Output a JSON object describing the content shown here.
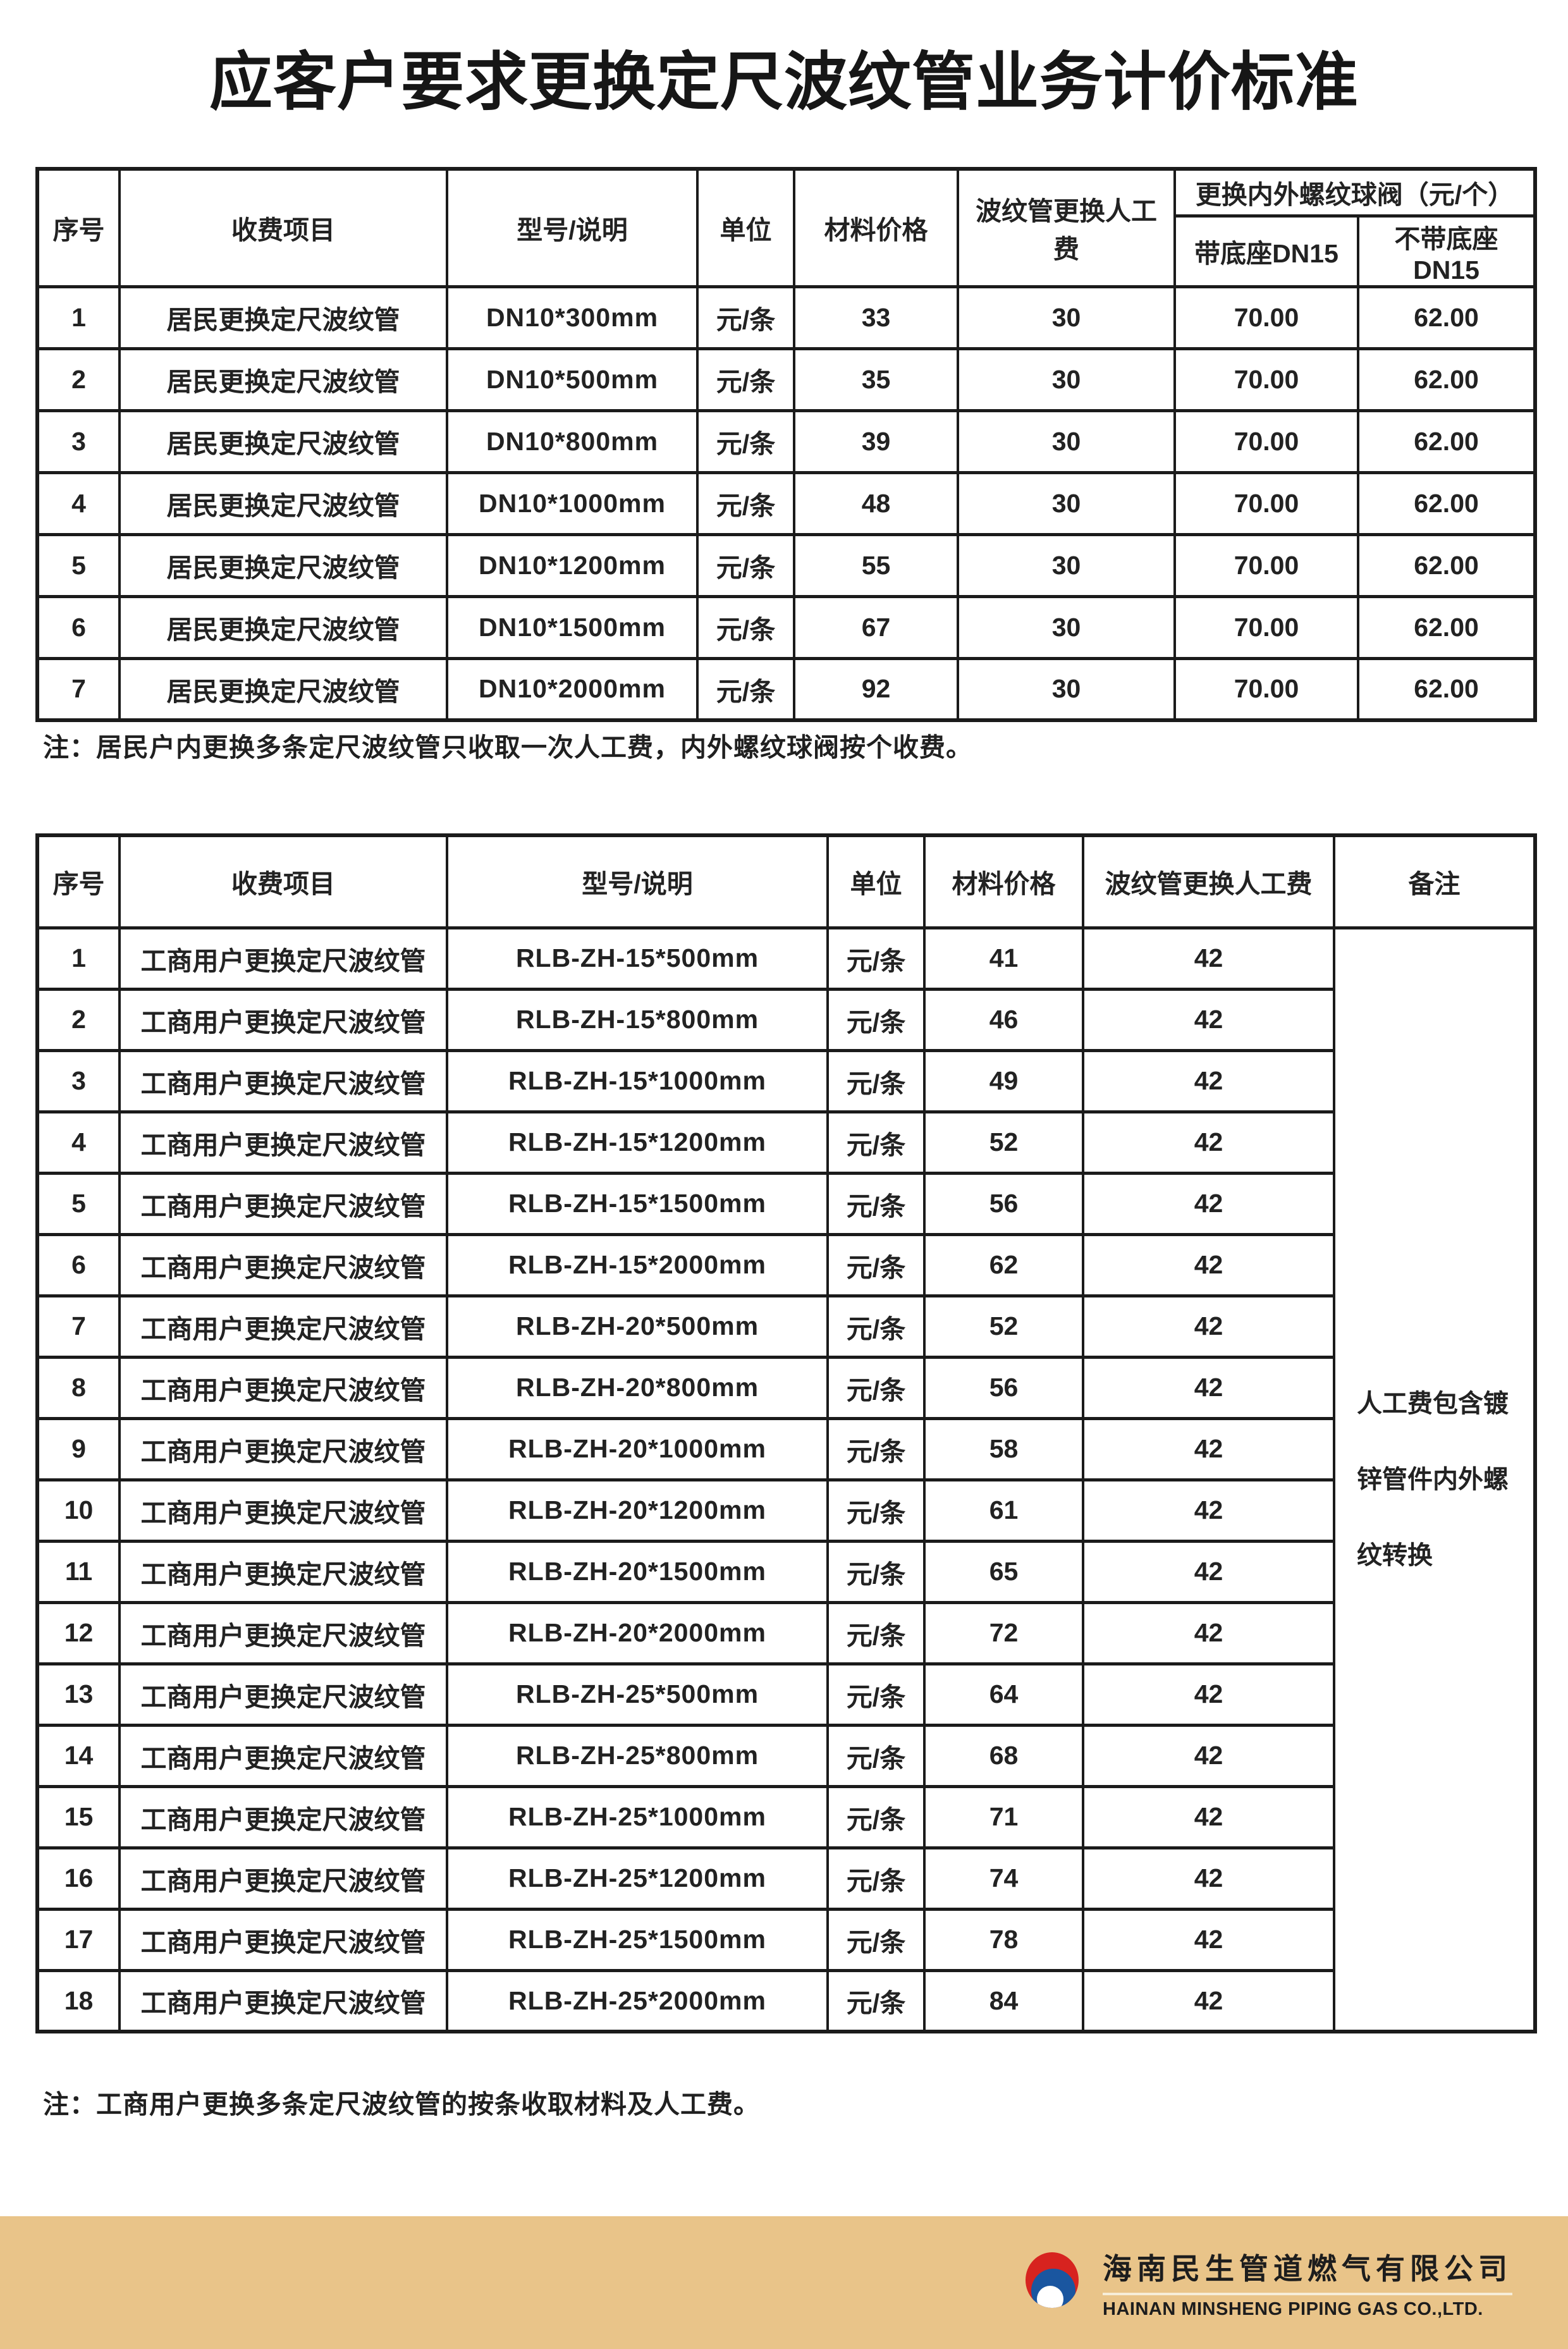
{
  "page": {
    "title": "应客户要求更换定尺波纹管业务计价标准",
    "background_color": "#ffffff",
    "border_color": "#1b1b1b"
  },
  "table1": {
    "headers": {
      "seq": "序号",
      "item": "收费项目",
      "model": "型号/说明",
      "unit": "单位",
      "material_price": "材料价格",
      "labor_fee": "波纹管更换人工费",
      "valve_group": "更换内外螺纹球阀（元/个）",
      "valve_with_base": "带底座DN15",
      "valve_without_base": "不带底座DN15"
    },
    "rows": [
      [
        "1",
        "居民更换定尺波纹管",
        "DN10*300mm",
        "元/条",
        "33",
        "30",
        "70.00",
        "62.00"
      ],
      [
        "2",
        "居民更换定尺波纹管",
        "DN10*500mm",
        "元/条",
        "35",
        "30",
        "70.00",
        "62.00"
      ],
      [
        "3",
        "居民更换定尺波纹管",
        "DN10*800mm",
        "元/条",
        "39",
        "30",
        "70.00",
        "62.00"
      ],
      [
        "4",
        "居民更换定尺波纹管",
        "DN10*1000mm",
        "元/条",
        "48",
        "30",
        "70.00",
        "62.00"
      ],
      [
        "5",
        "居民更换定尺波纹管",
        "DN10*1200mm",
        "元/条",
        "55",
        "30",
        "70.00",
        "62.00"
      ],
      [
        "6",
        "居民更换定尺波纹管",
        "DN10*1500mm",
        "元/条",
        "67",
        "30",
        "70.00",
        "62.00"
      ],
      [
        "7",
        "居民更换定尺波纹管",
        "DN10*2000mm",
        "元/条",
        "92",
        "30",
        "70.00",
        "62.00"
      ]
    ],
    "note": "注：居民户内更换多条定尺波纹管只收取一次人工费，内外螺纹球阀按个收费。"
  },
  "table2": {
    "headers": {
      "seq": "序号",
      "item": "收费项目",
      "model": "型号/说明",
      "unit": "单位",
      "material_price": "材料价格",
      "labor_fee": "波纹管更换人工费",
      "remark": "备注"
    },
    "rows": [
      [
        "1",
        "工商用户更换定尺波纹管",
        "RLB-ZH-15*500mm",
        "元/条",
        "41",
        "42"
      ],
      [
        "2",
        "工商用户更换定尺波纹管",
        "RLB-ZH-15*800mm",
        "元/条",
        "46",
        "42"
      ],
      [
        "3",
        "工商用户更换定尺波纹管",
        "RLB-ZH-15*1000mm",
        "元/条",
        "49",
        "42"
      ],
      [
        "4",
        "工商用户更换定尺波纹管",
        "RLB-ZH-15*1200mm",
        "元/条",
        "52",
        "42"
      ],
      [
        "5",
        "工商用户更换定尺波纹管",
        "RLB-ZH-15*1500mm",
        "元/条",
        "56",
        "42"
      ],
      [
        "6",
        "工商用户更换定尺波纹管",
        "RLB-ZH-15*2000mm",
        "元/条",
        "62",
        "42"
      ],
      [
        "7",
        "工商用户更换定尺波纹管",
        "RLB-ZH-20*500mm",
        "元/条",
        "52",
        "42"
      ],
      [
        "8",
        "工商用户更换定尺波纹管",
        "RLB-ZH-20*800mm",
        "元/条",
        "56",
        "42"
      ],
      [
        "9",
        "工商用户更换定尺波纹管",
        "RLB-ZH-20*1000mm",
        "元/条",
        "58",
        "42"
      ],
      [
        "10",
        "工商用户更换定尺波纹管",
        "RLB-ZH-20*1200mm",
        "元/条",
        "61",
        "42"
      ],
      [
        "11",
        "工商用户更换定尺波纹管",
        "RLB-ZH-20*1500mm",
        "元/条",
        "65",
        "42"
      ],
      [
        "12",
        "工商用户更换定尺波纹管",
        "RLB-ZH-20*2000mm",
        "元/条",
        "72",
        "42"
      ],
      [
        "13",
        "工商用户更换定尺波纹管",
        "RLB-ZH-25*500mm",
        "元/条",
        "64",
        "42"
      ],
      [
        "14",
        "工商用户更换定尺波纹管",
        "RLB-ZH-25*800mm",
        "元/条",
        "68",
        "42"
      ],
      [
        "15",
        "工商用户更换定尺波纹管",
        "RLB-ZH-25*1000mm",
        "元/条",
        "71",
        "42"
      ],
      [
        "16",
        "工商用户更换定尺波纹管",
        "RLB-ZH-25*1200mm",
        "元/条",
        "74",
        "42"
      ],
      [
        "17",
        "工商用户更换定尺波纹管",
        "RLB-ZH-25*1500mm",
        "元/条",
        "78",
        "42"
      ],
      [
        "18",
        "工商用户更换定尺波纹管",
        "RLB-ZH-25*2000mm",
        "元/条",
        "84",
        "42"
      ]
    ],
    "remark_lines": [
      "人工费包含镀",
      "锌管件内外螺",
      "纹转换"
    ],
    "note": "注：工商用户更换多条定尺波纹管的按条收取材料及人工费。"
  },
  "footer": {
    "company_cn": "海南民生管道燃气有限公司",
    "company_en": "HAINAN MINSHENG PIPING GAS CO.,LTD.",
    "bar_color": "#E9C489",
    "rule_color": "#F6EDD8",
    "logo": {
      "name": "minsheng-gas-logo",
      "red": "#D7231F",
      "blue": "#1A56A0",
      "white": "#FFFFFF"
    }
  }
}
